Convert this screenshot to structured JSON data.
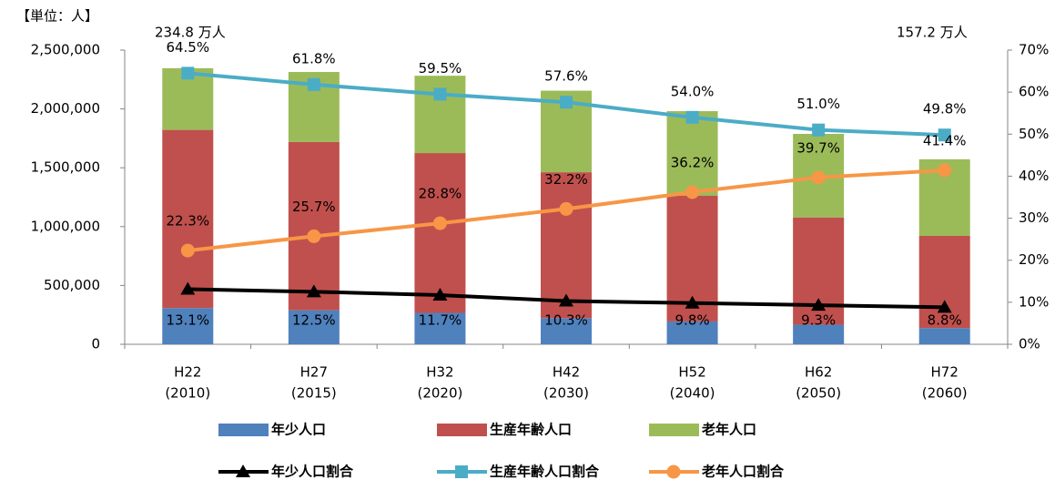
{
  "chart_data": {
    "type": "bar",
    "annotations": [
      "【単位：人】",
      "234.8 万人",
      "157.2 万人"
    ],
    "categories": [
      [
        "H22",
        "(2010)"
      ],
      [
        "H27",
        "(2015)"
      ],
      [
        "H32",
        "(2020)"
      ],
      [
        "H42",
        "(2030)"
      ],
      [
        "H52",
        "(2040)"
      ],
      [
        "H62",
        "(2050)"
      ],
      [
        "H72",
        "(2060)"
      ]
    ],
    "stacked": true,
    "series": [
      {
        "name": "年少人口",
        "type": "bar",
        "color": "#4f81bd",
        "values": [
          308000,
          289000,
          267000,
          222000,
          194000,
          166000,
          138000
        ]
      },
      {
        "name": "生産年齢人口",
        "type": "bar",
        "color": "#c0504d",
        "values": [
          1514000,
          1430000,
          1358000,
          1240000,
          1070000,
          912000,
          783000
        ]
      },
      {
        "name": "老年人口",
        "type": "bar",
        "color": "#9bbb59",
        "values": [
          524000,
          595000,
          657000,
          693000,
          717000,
          710000,
          651000
        ]
      },
      {
        "name": "年少人口割合",
        "type": "line",
        "axis": "y2",
        "color": "#000000",
        "marker": "triangle",
        "values": [
          13.1,
          12.5,
          11.7,
          10.3,
          9.8,
          9.3,
          8.8
        ],
        "value_labels": [
          "13.1%",
          "12.5%",
          "11.7%",
          "10.3%",
          "9.8%",
          "9.3%",
          "8.8%"
        ]
      },
      {
        "name": "生産年齢人口割合",
        "type": "line",
        "axis": "y2",
        "color": "#4bacc6",
        "marker": "square",
        "values": [
          64.5,
          61.8,
          59.5,
          57.6,
          54.0,
          51.0,
          49.8
        ],
        "value_labels": [
          "64.5%",
          "61.8%",
          "59.5%",
          "57.6%",
          "54.0%",
          "51.0%",
          "49.8%"
        ]
      },
      {
        "name": "老年人口割合",
        "type": "line",
        "axis": "y2",
        "color": "#f79646",
        "marker": "circle",
        "values": [
          22.3,
          25.7,
          28.8,
          32.2,
          36.2,
          39.7,
          41.4
        ],
        "value_labels": [
          "22.3%",
          "25.7%",
          "28.8%",
          "32.2%",
          "36.2%",
          "39.7%",
          "41.4%"
        ]
      }
    ],
    "ylim": [
      0,
      2500000
    ],
    "yticks": [
      0,
      {
        "value": 500000,
        "label": "500,000"
      },
      {
        "value": 1000000,
        "label": "1,000,000"
      },
      {
        "value": 1500000,
        "label": "1,500,000"
      },
      {
        "value": 2000000,
        "label": "2,000,000"
      },
      {
        "value": 2500000,
        "label": "2,500,000"
      }
    ],
    "y2lim": [
      0,
      70
    ],
    "y2ticks": [
      {
        "value": 0,
        "label": "0%"
      },
      {
        "value": 10,
        "label": "10%"
      },
      {
        "value": 20,
        "label": "20%"
      },
      {
        "value": 30,
        "label": "30%"
      },
      {
        "value": 40,
        "label": "40%"
      },
      {
        "value": 50,
        "label": "50%"
      },
      {
        "value": 60,
        "label": "60%"
      },
      {
        "value": 70,
        "label": "70%"
      }
    ],
    "grid": false,
    "legend": "bottom"
  }
}
